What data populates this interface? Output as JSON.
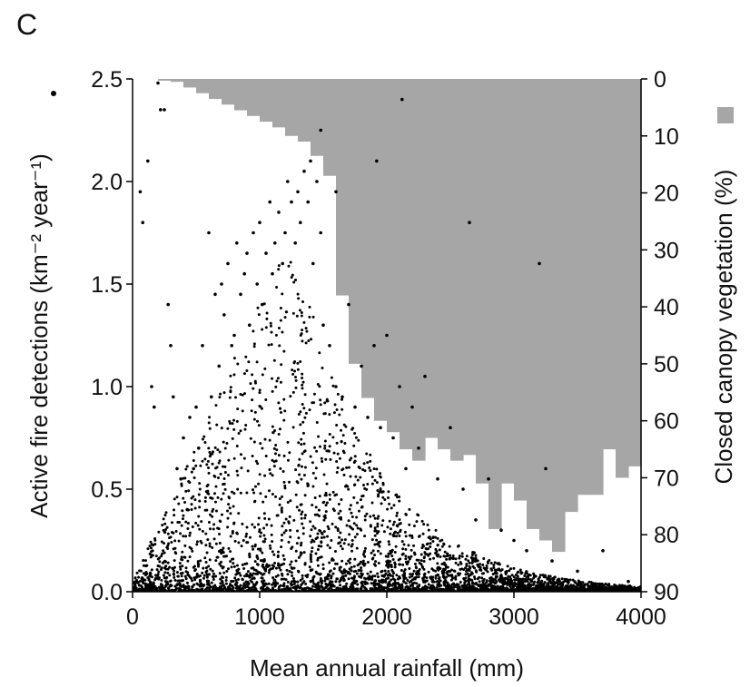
{
  "panel_label": "C",
  "chart_data": {
    "type": "scatter",
    "xlabel": "Mean annual rainfall (mm)",
    "ylabel_left": "Active fire detections (km⁻² year⁻¹)",
    "ylabel_right": "Closed canopy vegetation (%)",
    "xlim": [
      0,
      4000
    ],
    "ylim_left": [
      0,
      2.5
    ],
    "ylim_right": [
      0,
      90
    ],
    "right_axis_inverted": true,
    "x_ticks": [
      "0",
      "1000",
      "2000",
      "3000",
      "4000"
    ],
    "y_left_ticks": [
      "0.0",
      "0.5",
      "1.0",
      "1.5",
      "2.0",
      "2.5"
    ],
    "y_right_ticks": [
      "0",
      "10",
      "20",
      "30",
      "40",
      "50",
      "60",
      "70",
      "80",
      "90"
    ],
    "marker_color": "#000000",
    "canopy_color": "#a6a6a6",
    "series": [
      {
        "kind": "histogram",
        "bin_width": 100,
        "x": [
          0,
          100,
          200,
          300,
          400,
          500,
          600,
          700,
          800,
          900,
          1000,
          1100,
          1200,
          1300,
          1400,
          1500,
          1600,
          1700,
          1800,
          1900,
          2000,
          2100,
          2200,
          2300,
          2400,
          2500,
          2600,
          2700,
          2800,
          2900,
          3000,
          3100,
          3200,
          3300,
          3400,
          3500,
          3600,
          3700,
          3800,
          3900
        ],
        "values": [
          0,
          0,
          0.3,
          0.5,
          1.5,
          2.5,
          3.5,
          4.5,
          5.5,
          6.5,
          7.5,
          8.5,
          10,
          11,
          13.5,
          17,
          38,
          50,
          56,
          60,
          62,
          65,
          67,
          63,
          65,
          67,
          66,
          71,
          79,
          71,
          74,
          79,
          81,
          83,
          76,
          73,
          73,
          65,
          70,
          68
        ]
      },
      {
        "kind": "points",
        "x": [
          60,
          80,
          120,
          150,
          170,
          200,
          220,
          250,
          280,
          300,
          320,
          350,
          380,
          400,
          430,
          450,
          480,
          500,
          520,
          550,
          600,
          620,
          650,
          680,
          700,
          720,
          750,
          780,
          800,
          820,
          850,
          880,
          900,
          920,
          950,
          980,
          1000,
          1020,
          1050,
          1080,
          1100,
          1120,
          1150,
          1180,
          1200,
          1220,
          1250,
          1280,
          1300,
          1320,
          1350,
          1380,
          1400,
          1420,
          1450,
          1480,
          1500,
          1550,
          1600,
          1650,
          1700,
          1750,
          1800,
          1850,
          1900,
          1950,
          2000,
          2050,
          2100,
          2150,
          2200,
          2250,
          2300,
          2400,
          2500,
          2600,
          2700,
          2800,
          2900,
          3000,
          3100,
          3250,
          3300,
          3500,
          3700,
          3900,
          2120,
          1480,
          1920,
          1600,
          2650,
          3200
        ],
        "y": [
          1.95,
          1.8,
          2.1,
          1.0,
          0.9,
          2.48,
          2.35,
          2.35,
          1.4,
          1.2,
          0.95,
          0.6,
          0.55,
          0.75,
          0.4,
          0.85,
          0.6,
          0.9,
          0.7,
          1.2,
          1.75,
          0.95,
          1.45,
          1.1,
          1.5,
          1.35,
          1.6,
          1.2,
          1.25,
          1.7,
          1.45,
          1.55,
          1.65,
          1.3,
          1.75,
          1.5,
          1.8,
          1.4,
          1.65,
          1.9,
          1.55,
          1.7,
          1.85,
          1.6,
          1.75,
          2.0,
          1.9,
          1.7,
          1.95,
          1.8,
          2.05,
          1.9,
          2.1,
          1.6,
          2.0,
          1.75,
          1.3,
          1.2,
          1.0,
          0.95,
          1.4,
          0.9,
          1.1,
          0.85,
          1.2,
          0.8,
          1.25,
          0.75,
          1.0,
          0.6,
          0.9,
          0.7,
          1.05,
          0.55,
          0.8,
          0.5,
          0.35,
          0.55,
          0.3,
          0.25,
          0.2,
          0.6,
          0.15,
          0.1,
          0.2,
          0.05,
          2.4,
          2.25,
          2.1,
          1.95,
          1.8,
          1.6
        ]
      }
    ]
  }
}
